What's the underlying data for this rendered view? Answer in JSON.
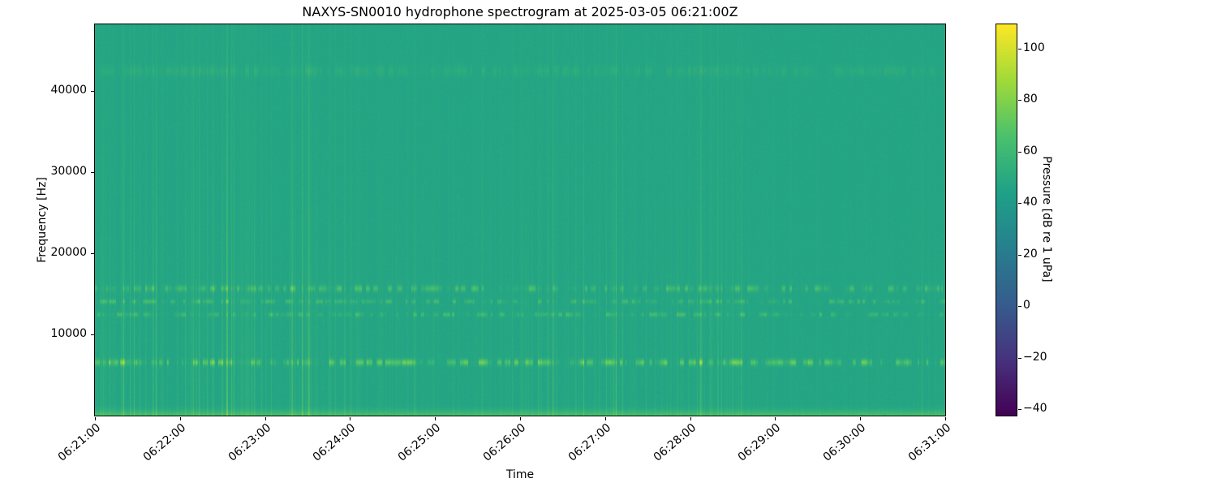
{
  "figure": {
    "title": "NAXYS-SN0010 hydrophone spectrogram at 2025-03-05 06:21:00Z",
    "background_color": "#ffffff"
  },
  "axes": {
    "x": {
      "label": "Time",
      "ticks": [
        "06:21:00",
        "06:22:00",
        "06:23:00",
        "06:24:00",
        "06:25:00",
        "06:26:00",
        "06:27:00",
        "06:28:00",
        "06:29:00",
        "06:30:00",
        "06:31:00"
      ]
    },
    "y": {
      "label": "Frequency [Hz]",
      "ticks": [
        "10000",
        "20000",
        "30000",
        "40000"
      ]
    }
  },
  "colorbar": {
    "label": "Pressure [dB re 1 uPa]",
    "ticks": [
      "100",
      "80",
      "60",
      "40",
      "20",
      "0",
      "−20",
      "−40"
    ],
    "colormap": "viridis",
    "vmin_db": -42.5,
    "vmax_db": 109.5
  },
  "chart_data": {
    "type": "heatmap",
    "title": "NAXYS-SN0010 hydrophone spectrogram at 2025-03-05 06:21:00Z",
    "xlabel": "Time",
    "ylabel": "Frequency [Hz]",
    "x_start": "06:21:00",
    "x_end": "06:31:00",
    "x_tick_interval_s": 60,
    "freq_range_hz": [
      0,
      48200
    ],
    "value_label": "Pressure [dB re 1 uPa]",
    "value_range_db": [
      -42.5,
      109.5
    ],
    "colormap": "viridis",
    "background_level_db": 47,
    "tonal_bands": [
      {
        "freq_hz": 6600,
        "half_width_hz": 260,
        "peak_boost_db": 40,
        "duty": 0.6
      },
      {
        "freq_hz": 12500,
        "half_width_hz": 180,
        "peak_boost_db": 22,
        "duty": 0.5
      },
      {
        "freq_hz": 14100,
        "half_width_hz": 180,
        "peak_boost_db": 21,
        "duty": 0.48
      },
      {
        "freq_hz": 15700,
        "half_width_hz": 260,
        "peak_boost_db": 26,
        "duty": 0.55
      },
      {
        "freq_hz": 42500,
        "half_width_hz": 450,
        "peak_boost_db": 7,
        "duty": 0.95
      }
    ],
    "broadband_low_band": {
      "max_freq_hz": 1600,
      "peak_boost_db": 16
    },
    "vertical_striations": {
      "fraction_of_columns": 0.45,
      "typical_boost_db": 8,
      "max_boost_db": 28
    }
  }
}
